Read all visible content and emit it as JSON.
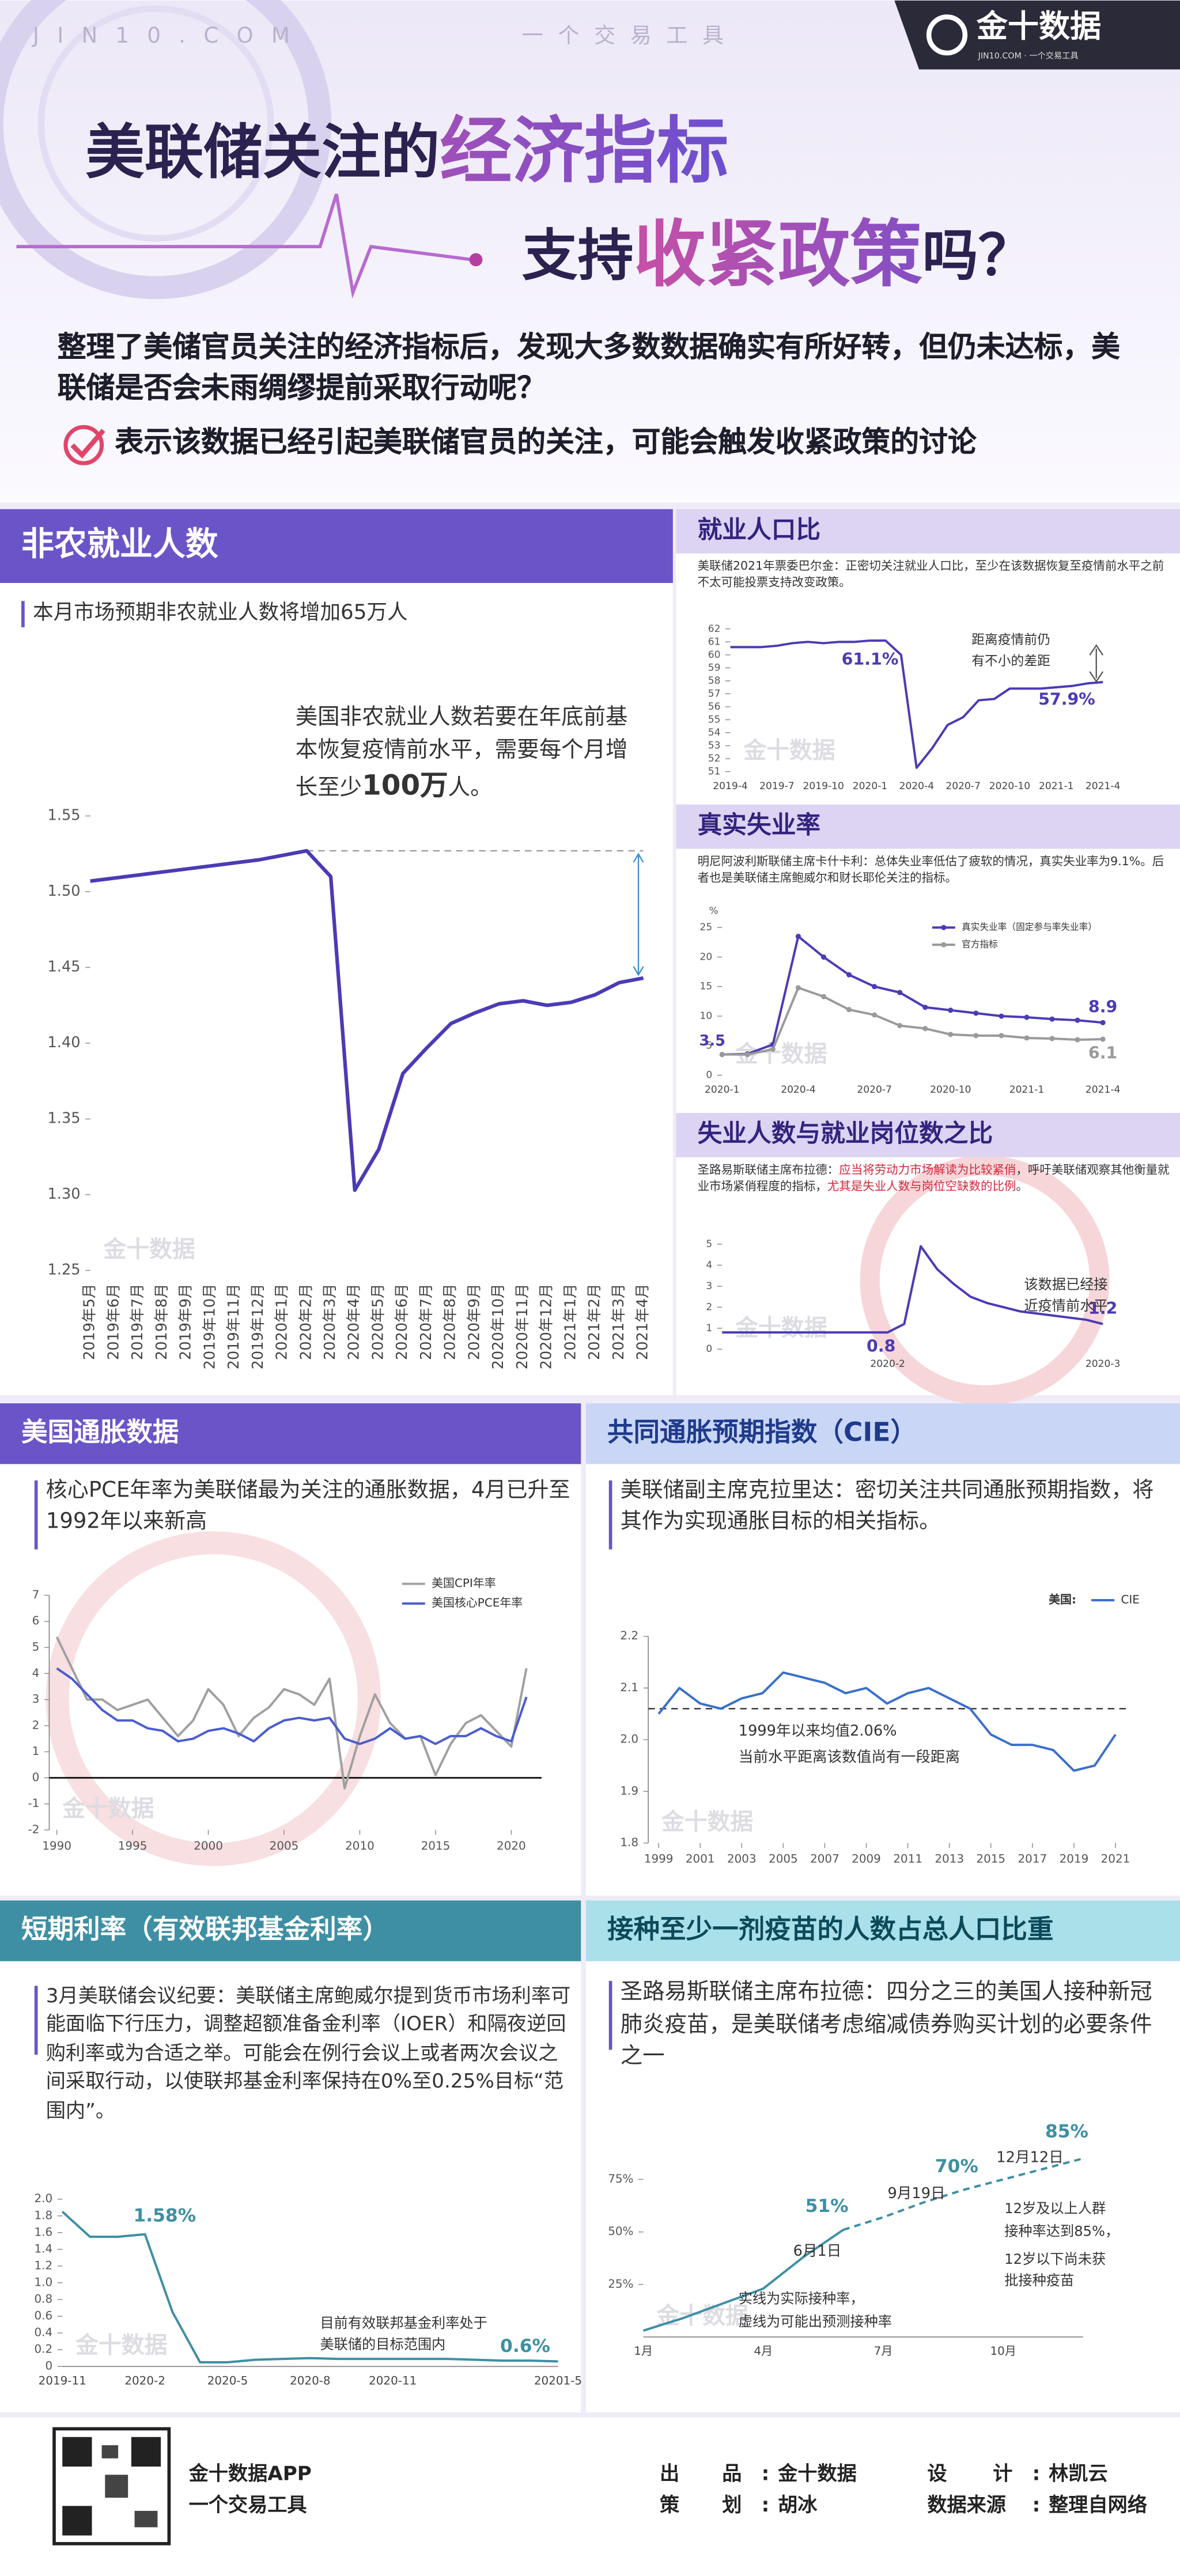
{
  "header": {
    "site": "JIN10.COM",
    "slogan": "一个交易工具",
    "logo": "金十数据",
    "logo_sub": "JIN10.COM · 一个交易工具",
    "title_line1": [
      "美联储关注的",
      "经济指标"
    ],
    "title_line2": [
      "支持",
      "收紧政策",
      "吗？"
    ],
    "intro": "整理了美储官员关注的经济指标后，发现大多数数据确实有所好转，但仍未达标，美联储是否会未雨绸缪提前采取行动呢？",
    "note": "表示该数据已经引起美联储官员的关注，可能会触发收紧政策的讨论"
  },
  "watermark": "金十数据",
  "chart_data": [
    {
      "type": "line",
      "title": "非农就业人数",
      "subtitle": "本月市场预期非农就业人数将增加65万人",
      "annotation": [
        "美国非农就业人数若要在年底前基本恢复疫情前水平，需要每个月增长至少",
        "100万",
        "人。"
      ],
      "categories": [
        "2019年5月",
        "2019年6月",
        "2019年7月",
        "2019年8月",
        "2019年9月",
        "2019年10月",
        "2019年11月",
        "2019年12月",
        "2020年1月",
        "2020年2月",
        "2020年3月",
        "2020年4月",
        "2020年5月",
        "2020年6月",
        "2020年7月",
        "2020年8月",
        "2020年9月",
        "2020年10月",
        "2020年11月",
        "2020年12月",
        "2021年1月",
        "2021年2月",
        "2021年3月",
        "2021年4月"
      ],
      "series": [
        {
          "color": "#4b3bb5",
          "values": [
            1.507,
            1.509,
            1.511,
            1.513,
            1.515,
            1.517,
            1.519,
            1.521,
            1.524,
            1.527,
            1.51,
            1.303,
            1.33,
            1.38,
            1.397,
            1.413,
            1.42,
            1.426,
            1.428,
            1.425,
            1.427,
            1.432,
            1.44,
            1.443
          ]
        }
      ],
      "ylim": [
        1.25,
        1.55
      ],
      "yticks": [
        1.25,
        {
          "value": 1.3,
          "label": "1.30"
        },
        1.35,
        {
          "value": 1.4,
          "label": "1.40"
        },
        1.45,
        {
          "value": 1.5,
          "label": "1.50"
        },
        1.55
      ]
    },
    {
      "type": "line",
      "title": "就业人口比",
      "text": "美联储2021年票委巴尔金：正密切关注就业人口比，至少在该数据恢复至疫情前水平之前不太可能投票支持改变政策。",
      "categories": [
        "2019-4",
        null,
        null,
        "2019-7",
        null,
        null,
        "2019-10",
        null,
        null,
        "2020-1",
        null,
        null,
        "2020-4",
        null,
        null,
        "2020-7",
        null,
        null,
        "2020-10",
        null,
        null,
        "2021-1",
        null,
        null,
        "2021-4"
      ],
      "series": [
        {
          "color": "#4b3bb5",
          "values": [
            60.6,
            60.6,
            60.6,
            60.7,
            60.9,
            61.0,
            60.9,
            61.0,
            61.0,
            61.1,
            61.1,
            60.0,
            51.3,
            52.8,
            54.6,
            55.2,
            56.5,
            56.6,
            57.4,
            57.4,
            57.4,
            57.5,
            57.6,
            57.8,
            57.9
          ],
          "value_labels": [
            null,
            null,
            null,
            null,
            null,
            null,
            null,
            null,
            null,
            "61.1%",
            null,
            null,
            null,
            null,
            null,
            null,
            null,
            null,
            null,
            null,
            null,
            null,
            null,
            null,
            "57.9%"
          ]
        }
      ],
      "ylim": [
        51,
        62
      ],
      "yticks": [
        51,
        52,
        53,
        54,
        55,
        56,
        57,
        58,
        59,
        60,
        61,
        62
      ],
      "notes": [
        "距离疫情前仍",
        "有不小的差距"
      ]
    },
    {
      "type": "line",
      "title": "真实失业率",
      "text": "明尼阿波利斯联储主席卡什卡利：总体失业率低估了疲软的情况，真实失业率为9.1%。后者也是美联储主席鲍威尔和财长耶伦关注的指标。",
      "categories": [
        "2020-1",
        null,
        null,
        "2020-4",
        null,
        null,
        "2020-7",
        null,
        null,
        "2020-10",
        null,
        null,
        "2021-1",
        null,
        null,
        "2021-4"
      ],
      "series": [
        {
          "name": "真实失业率（固定参与率失业率）",
          "color": "#4b3bb5",
          "values": [
            3.5,
            3.6,
            5.2,
            23.5,
            20,
            17,
            15,
            14,
            11.5,
            11,
            10.5,
            10,
            9.8,
            9.5,
            9.3,
            8.9
          ]
        },
        {
          "name": "官方指标",
          "color": "#9a9a9a",
          "values": [
            3.5,
            3.5,
            4.4,
            14.8,
            13.3,
            11.1,
            10.2,
            8.4,
            7.9,
            6.9,
            6.7,
            6.7,
            6.3,
            6.2,
            6.0,
            6.1
          ]
        }
      ],
      "markers": true,
      "ylim": [
        0,
        25
      ],
      "yticks": [
        0,
        5,
        10,
        15,
        20,
        25
      ],
      "y_unit": "%"
    },
    {
      "type": "line",
      "title": "失业人数与就业岗位数之比",
      "text": [
        "圣路易斯联储主席布拉德：",
        "应当将劳动力市场解读为比较紧俏",
        "，呼吁美联储观察其他衡量就业市场紧俏程度的指标，",
        "尤其是失业人数与岗位空缺数的比例",
        "。"
      ],
      "categories": [
        null,
        null,
        null,
        null,
        null,
        null,
        null,
        null,
        null,
        null,
        "2020-2",
        null,
        null,
        null,
        null,
        null,
        null,
        null,
        null,
        null,
        null,
        null,
        null,
        "2020-3"
      ],
      "series": [
        {
          "color": "#4b3bb5",
          "values": [
            0.8,
            0.8,
            0.8,
            0.8,
            0.8,
            0.8,
            0.8,
            0.8,
            0.8,
            0.8,
            0.8,
            1.2,
            4.9,
            3.8,
            3.1,
            2.5,
            2.2,
            2.0,
            1.8,
            1.7,
            1.6,
            1.5,
            1.4,
            1.2
          ]
        }
      ],
      "ylim": [
        0,
        5
      ],
      "yticks": [
        0,
        1,
        2,
        3,
        4,
        5
      ],
      "notes": [
        "该数据已经接",
        "近疫情前水平"
      ]
    },
    {
      "type": "line",
      "title": "美国通胀数据",
      "text": "核心PCE年率为美联储最为关注的通胀数据，4月已升至1992年以来新高",
      "x": [
        1990,
        1991,
        1992,
        1993,
        1994,
        1995,
        1996,
        1997,
        1998,
        1999,
        2000,
        2001,
        2002,
        2003,
        2004,
        2005,
        2006,
        2007,
        2008,
        2009,
        2010,
        2011,
        2012,
        2013,
        2014,
        2015,
        2016,
        2017,
        2018,
        2019,
        2020,
        2021
      ],
      "series": [
        {
          "name": "美国CPI年率",
          "color": "#a0a0a0",
          "values": [
            5.4,
            4.2,
            3.0,
            3.0,
            2.6,
            2.8,
            3.0,
            2.3,
            1.6,
            2.2,
            3.4,
            2.8,
            1.6,
            2.3,
            2.7,
            3.4,
            3.2,
            2.8,
            3.8,
            -0.4,
            1.6,
            3.2,
            2.1,
            1.5,
            1.6,
            0.1,
            1.3,
            2.1,
            2.4,
            1.8,
            1.2,
            4.2
          ]
        },
        {
          "name": "美国核心PCE年率",
          "color": "#4a5ccf",
          "values": [
            4.2,
            3.8,
            3.2,
            2.6,
            2.2,
            2.2,
            1.9,
            1.8,
            1.4,
            1.5,
            1.8,
            1.9,
            1.7,
            1.4,
            1.9,
            2.2,
            2.3,
            2.2,
            2.3,
            1.5,
            1.3,
            1.5,
            1.9,
            1.5,
            1.6,
            1.3,
            1.6,
            1.6,
            1.9,
            1.6,
            1.4,
            3.1
          ]
        }
      ],
      "xlim": [
        1989.5,
        2022
      ],
      "xticks": [
        1990,
        1995,
        2000,
        2005,
        2010,
        2015,
        2020
      ],
      "ylim": [
        -2,
        7
      ],
      "yticks": [
        -2,
        -1,
        0,
        1,
        2,
        3,
        4,
        5,
        6,
        7
      ]
    },
    {
      "type": "line",
      "title": "共同通胀预期指数（CIE）",
      "text": "美联储副主席克拉里达：密切关注共同通胀预期指数，将其作为实现通胀目标的相关指标。",
      "legend_title": "美国:",
      "x": [
        1999,
        2000,
        2001,
        2002,
        2003,
        2004,
        2005,
        2006,
        2007,
        2008,
        2009,
        2010,
        2011,
        2012,
        2013,
        2014,
        2015,
        2016,
        2017,
        2018,
        2019,
        2020,
        2021
      ],
      "series": [
        {
          "name": "CIE",
          "color": "#3a6fc9",
          "values": [
            2.05,
            2.1,
            2.07,
            2.06,
            2.08,
            2.09,
            2.13,
            2.12,
            2.11,
            2.09,
            2.1,
            2.07,
            2.09,
            2.1,
            2.08,
            2.06,
            2.01,
            1.99,
            1.99,
            1.98,
            1.94,
            1.95,
            2.01
          ]
        }
      ],
      "xlim": [
        1998.5,
        2021.5
      ],
      "xticks": [
        1999,
        2001,
        2003,
        2005,
        2007,
        2009,
        2011,
        2013,
        2015,
        2017,
        2019,
        2021
      ],
      "ylim": [
        1.8,
        2.2
      ],
      "yticks": [
        1.8,
        1.9,
        {
          "value": 2,
          "label": "2.0"
        },
        2.1,
        2.2
      ],
      "mean": 2.06,
      "notes": [
        "1999年以来均值2.06%",
        "当前水平距离该数值尚有一段距离"
      ]
    },
    {
      "type": "line",
      "title": "短期利率（有效联邦基金利率）",
      "text": "3月美联储会议纪要：美联储主席鲍威尔提到货币市场利率可能面临下行压力，调整超额准备金利率（IOER）和隔夜逆回购利率或为合适之举。可能会在例行会议上或者两次会议之间采取行动，以使联邦基金利率保持在0%至0.25%目标“范围内”。",
      "categories": [
        "2019-11",
        null,
        null,
        "2020-2",
        null,
        null,
        "2020-5",
        null,
        null,
        "2020-8",
        null,
        null,
        "2020-11",
        null,
        null,
        null,
        null,
        null,
        "20201-5"
      ],
      "series": [
        {
          "color": "#3e8fa3",
          "values": [
            1.85,
            1.55,
            1.55,
            1.58,
            0.65,
            0.05,
            0.05,
            0.08,
            0.09,
            0.1,
            0.09,
            0.09,
            0.09,
            0.09,
            0.09,
            0.08,
            0.07,
            0.07,
            0.06
          ],
          "value_labels": [
            null,
            null,
            null,
            "1.58%",
            null,
            null,
            null,
            null,
            null,
            null,
            null,
            null,
            null,
            null,
            null,
            null,
            null,
            null,
            null
          ]
        }
      ],
      "ylim": [
        0,
        2
      ],
      "yticks": [
        0,
        0.2,
        0.4,
        0.6,
        0.8,
        {
          "value": 1,
          "label": "1.0"
        },
        1.2,
        1.4,
        1.6,
        1.8,
        {
          "value": 2,
          "label": "2.0"
        }
      ],
      "notes": [
        "目前有效联邦基金利率处于",
        "美联储的目标范围内",
        "0.6%"
      ]
    },
    {
      "type": "line",
      "title": "接种至少一剂疫苗的人数占总人口比重",
      "text": "圣路易斯联储主席布拉德：四分之三的美国人接种新冠肺炎疫苗，是美联储考虑缩减债券购买计划的必要条件之一",
      "categories": [
        "1月",
        null,
        null,
        "4月",
        null,
        null,
        "7月",
        null,
        null,
        "10月",
        null,
        null
      ],
      "series": [
        {
          "color": "#3e8fa3",
          "values": [
            3,
            9,
            16,
            23,
            38,
            51,
            null,
            null,
            null,
            null,
            null,
            null
          ],
          "value_labels": [
            null,
            null,
            null,
            null,
            null,
            "51%",
            null,
            null,
            null,
            null,
            null,
            null
          ]
        },
        {
          "color": "#3e8fa3",
          "dash": true,
          "values": [
            null,
            null,
            null,
            null,
            null,
            51,
            57,
            64,
            70,
            75,
            80,
            85
          ],
          "value_labels": [
            null,
            null,
            null,
            null,
            null,
            null,
            null,
            null,
            "70%",
            null,
            null,
            "85%"
          ]
        }
      ],
      "ylim": [
        0,
        100
      ],
      "yticks": [
        {
          "value": 25,
          "label": "25%"
        },
        {
          "value": 50,
          "label": "50%"
        },
        {
          "value": 75,
          "label": "75%"
        }
      ],
      "notes": [
        "6月1日",
        "9月19日",
        "12月12日",
        "12岁及以上人群",
        "接种率达到85%，",
        "12岁以下尚未获",
        "批接种疫苗",
        "实线为实际接种率，",
        "虚线为可能出预测接种率"
      ]
    }
  ],
  "footer": {
    "app_name": "金十数据APP",
    "app_slogan": "一个交易工具",
    "separator": ":",
    "credits": [
      {
        "label": "出品",
        "value": "金十数据"
      },
      {
        "label": "策划",
        "value": "胡冰"
      },
      {
        "label": "设计",
        "value": "林凯云"
      },
      {
        "label": "数据来源",
        "value": "整理自网络"
      }
    ]
  }
}
